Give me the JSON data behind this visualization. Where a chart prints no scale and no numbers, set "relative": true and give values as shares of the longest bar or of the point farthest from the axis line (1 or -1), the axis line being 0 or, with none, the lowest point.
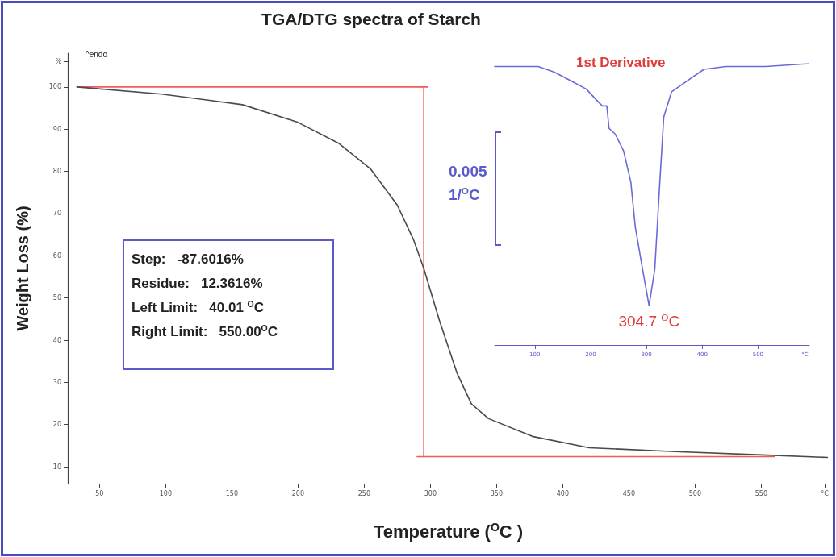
{
  "chart_data": [
    {
      "type": "line",
      "title": "TGA/DTG spectra of Starch",
      "xlabel": "Temperature ($^{O}$C )",
      "ylabel": "Weight Loss (%)",
      "xlim": [
        26,
        601
      ],
      "xticks": [
        50,
        100,
        150,
        200,
        250,
        300,
        350,
        400,
        450,
        500,
        550,
        {
          "value": 598,
          "label": "°C"
        }
      ],
      "ylim": [
        6,
        108
      ],
      "yticks": [
        10,
        20,
        30,
        40,
        50,
        60,
        70,
        80,
        90,
        100,
        {
          "value": 106,
          "label": "%"
        }
      ],
      "marker": "none",
      "series": [
        {
          "color": "#f05a5a",
          "x": [
            33,
            298
          ],
          "values": [
            100,
            100
          ]
        },
        {
          "color": "#f05a5a",
          "x": [
            295,
            295
          ],
          "values": [
            100,
            12.4
          ]
        },
        {
          "color": "#f05a5a",
          "x": [
            290,
            560
          ],
          "values": [
            12.4,
            12.4
          ]
        },
        {
          "color": "#4a4a4a",
          "x": [
            33,
            97,
            158,
            200,
            231,
            255,
            275,
            287,
            295,
            307,
            320,
            331,
            344,
            377,
            420,
            485,
            551,
            600
          ],
          "values": [
            100,
            98.3,
            95.8,
            91.6,
            86.6,
            80.5,
            72,
            64,
            57,
            44.5,
            32.3,
            24.9,
            21.4,
            17.2,
            14.5,
            13.6,
            12.8,
            12.2
          ]
        }
      ],
      "annotations": [
        "^endo",
        "Step:   -87.6016%",
        "Residue:   12.3616%",
        "Left Limit:   40.01 $^{O}$C",
        "Right Limit:   550.00$^{O}$C"
      ]
    },
    {
      "type": "line",
      "relative": true,
      "xlim": [
        28,
        592
      ],
      "xticks": [
        100,
        200,
        300,
        400,
        500,
        {
          "value": 584,
          "label": "°C"
        }
      ],
      "marker": "none",
      "series": [
        {
          "color": "#6a6ad8",
          "x": [
            28,
            57,
            106,
            135,
            164,
            192,
            211,
            221,
            229,
            233,
            244,
            259,
            272,
            280,
            293,
            304.7,
            315,
            324,
            331,
            345,
            374,
            403,
            442,
            514,
            591
          ],
          "values": [
            0.99,
            0.99,
            0.99,
            0.97,
            0.94,
            0.91,
            0.87,
            0.85,
            0.85,
            0.77,
            0.75,
            0.69,
            0.58,
            0.42,
            0.27,
            0.14,
            0.27,
            0.58,
            0.81,
            0.9,
            0.94,
            0.98,
            0.99,
            0.99,
            1
          ]
        }
      ],
      "annotations": [
        "1st Derivative",
        {
          "text": "304.7 $^{O}$C",
          "x": 304.7,
          "y": 0.14
        },
        "0.005",
        "1/$^{O}$C"
      ]
    }
  ]
}
